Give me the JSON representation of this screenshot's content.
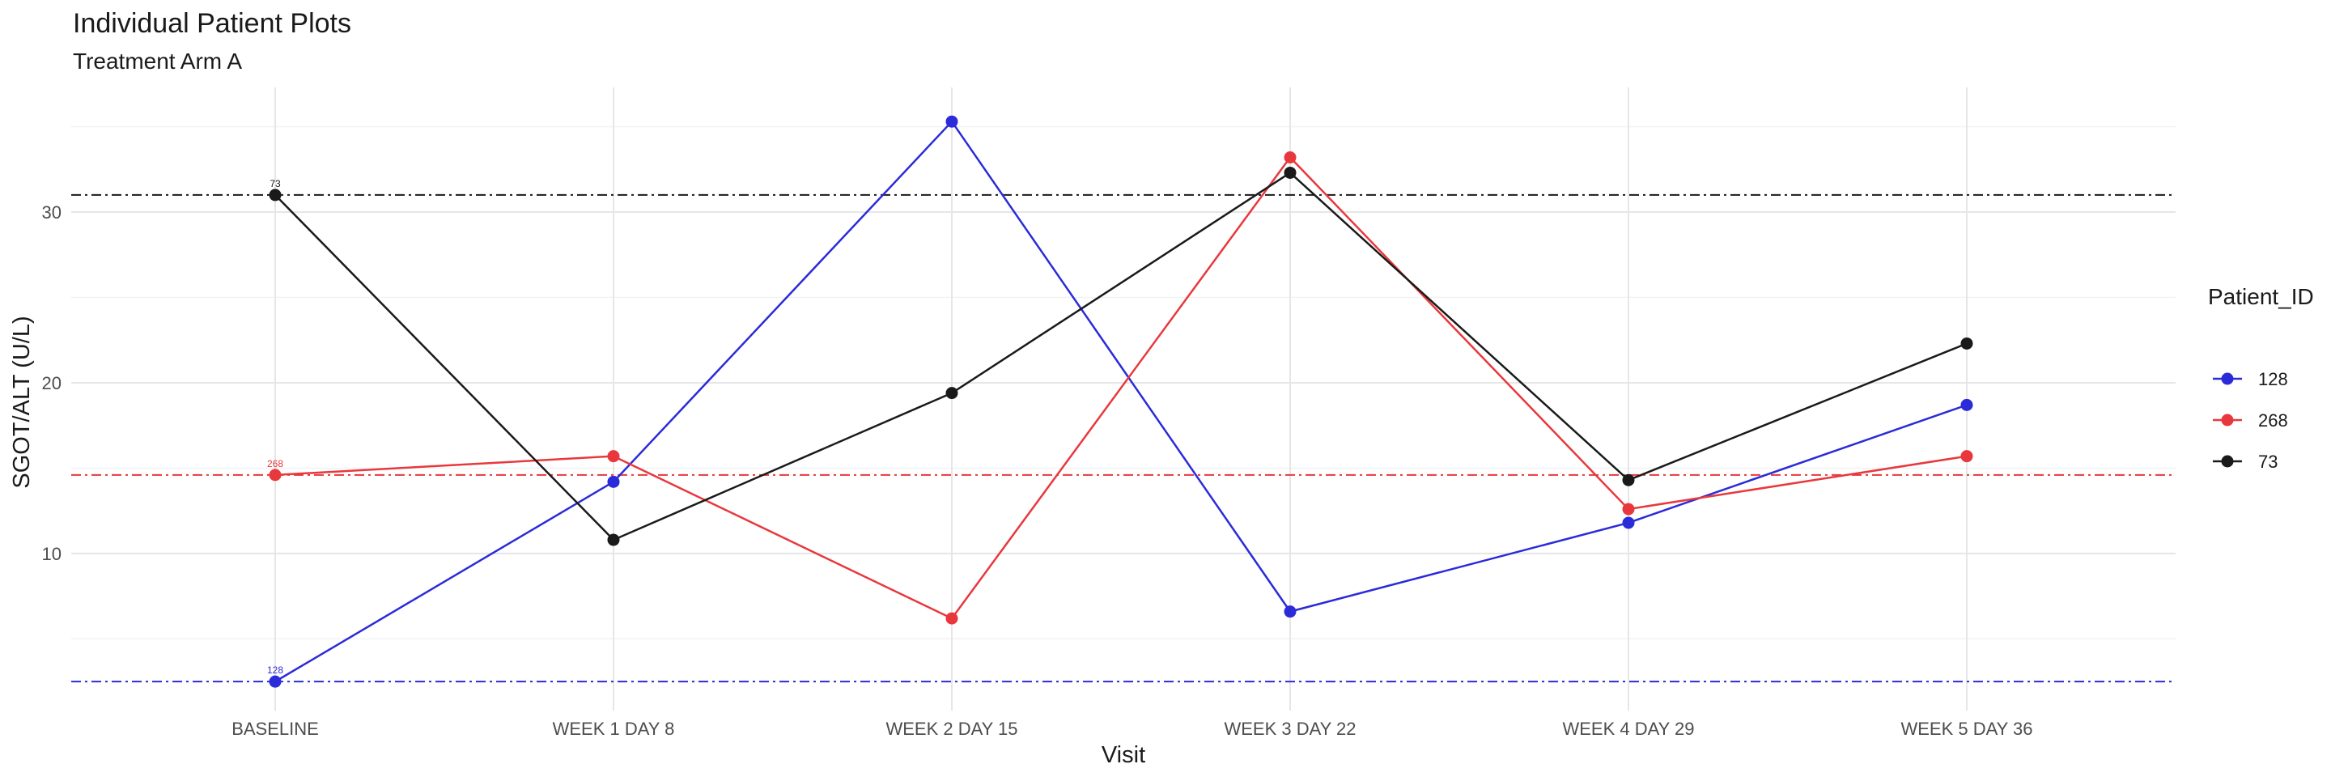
{
  "chart_data": {
    "type": "line",
    "title": "Individual Patient Plots",
    "subtitle": "Treatment Arm A",
    "xlabel": "Visit",
    "ylabel": "SGOT/ALT (U/L)",
    "categories": [
      "BASELINE",
      "WEEK 1 DAY 8",
      "WEEK 2 DAY 15",
      "WEEK 3 DAY 22",
      "WEEK 4 DAY 29",
      "WEEK 5 DAY 36"
    ],
    "ylim": [
      0.8,
      37.3
    ],
    "yticks": [
      10,
      20,
      30
    ],
    "grid": true,
    "legend": {
      "title": "Patient_ID",
      "position": "right"
    },
    "series": [
      {
        "name": "128",
        "color": "#2b2bd9",
        "values": [
          2.5,
          14.2,
          35.3,
          6.6,
          11.8,
          18.7
        ],
        "baseline": 2.5,
        "baseline_label": "128"
      },
      {
        "name": "268",
        "color": "#e8383d",
        "values": [
          14.6,
          15.7,
          6.2,
          33.2,
          12.6,
          15.7
        ],
        "baseline": 14.6,
        "baseline_label": "268"
      },
      {
        "name": "73",
        "color": "#1a1a1a",
        "values": [
          31.0,
          10.8,
          19.4,
          32.3,
          14.3,
          22.3
        ],
        "baseline": 31.0,
        "baseline_label": "73"
      }
    ]
  }
}
